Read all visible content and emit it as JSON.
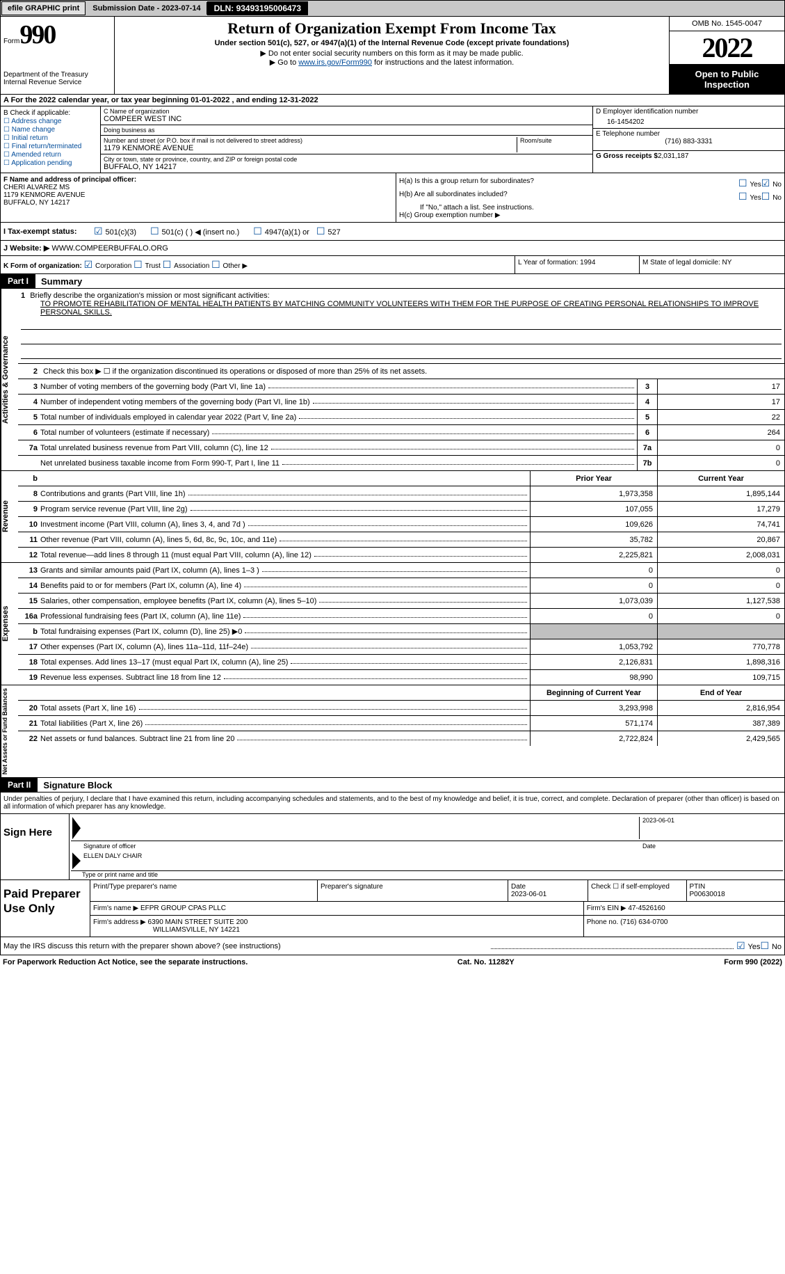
{
  "top": {
    "efile": "efile GRAPHIC print",
    "submission": "Submission Date - 2023-07-14",
    "dln": "DLN: 93493195006473"
  },
  "header": {
    "form_label": "Form",
    "form_num": "990",
    "dept": "Department of the Treasury",
    "irs": "Internal Revenue Service",
    "title": "Return of Organization Exempt From Income Tax",
    "sub": "Under section 501(c), 527, or 4947(a)(1) of the Internal Revenue Code (except private foundations)",
    "note1": "▶ Do not enter social security numbers on this form as it may be made public.",
    "note2_pre": "▶ Go to ",
    "note2_link": "www.irs.gov/Form990",
    "note2_post": " for instructions and the latest information.",
    "omb": "OMB No. 1545-0047",
    "year": "2022",
    "otp": "Open to Public Inspection"
  },
  "row_a": "A For the 2022 calendar year, or tax year beginning 01-01-2022    , and ending 12-31-2022",
  "block_b": {
    "label": "B Check if applicable:",
    "items": [
      "Address change",
      "Name change",
      "Initial return",
      "Final return/terminated",
      "Amended return",
      "Application pending"
    ]
  },
  "block_c": {
    "name_label": "C Name of organization",
    "name": "COMPEER WEST INC",
    "dba_label": "Doing business as",
    "dba": "",
    "addr_label": "Number and street (or P.O. box if mail is not delivered to street address)",
    "room_label": "Room/suite",
    "addr": "1179 KENMORE AVENUE",
    "city_label": "City or town, state or province, country, and ZIP or foreign postal code",
    "city": "BUFFALO, NY  14217"
  },
  "block_d": {
    "label": "D Employer identification number",
    "val": "16-1454202"
  },
  "block_e": {
    "label": "E Telephone number",
    "val": "(716) 883-3331"
  },
  "block_g": {
    "label": "G Gross receipts $",
    "val": "2,031,187"
  },
  "block_f": {
    "label": "F  Name and address of principal officer:",
    "name": "CHERI ALVAREZ MS",
    "addr1": "1179 KENMORE AVENUE",
    "addr2": "BUFFALO, NY  14217"
  },
  "block_h": {
    "a": "H(a)  Is this a group return for subordinates?",
    "b": "H(b)  Are all subordinates included?",
    "b_note": "If \"No,\" attach a list. See instructions.",
    "c": "H(c)  Group exemption number ▶"
  },
  "row_i": {
    "label": "I    Tax-exempt status:",
    "o1": "501(c)(3)",
    "o2": "501(c) (  ) ◀ (insert no.)",
    "o3": "4947(a)(1) or",
    "o4": "527"
  },
  "row_j": {
    "label": "J   Website: ▶",
    "val": "WWW.COMPEERBUFFALO.ORG"
  },
  "row_k": {
    "label": "K Form of organization:",
    "corp": "Corporation",
    "trust": "Trust",
    "assoc": "Association",
    "other": "Other ▶",
    "l": "L Year of formation: 1994",
    "m": "M State of legal domicile: NY"
  },
  "part1": {
    "hdr": "Part I",
    "title": "Summary"
  },
  "mission": {
    "q": "Briefly describe the organization's mission or most significant activities:",
    "text": "TO PROMOTE REHABILITATION OF MENTAL HEALTH PATIENTS BY MATCHING COMMUNITY VOLUNTEERS WITH THEM FOR THE PURPOSE OF CREATING PERSONAL RELATIONSHIPS TO IMPROVE PERSONAL SKILLS."
  },
  "line2": "Check this box ▶ ☐  if the organization discontinued its operations or disposed of more than 25% of its net assets.",
  "lines_ag": [
    {
      "n": "3",
      "d": "Number of voting members of the governing body (Part VI, line 1a)",
      "b": "3",
      "v": "17"
    },
    {
      "n": "4",
      "d": "Number of independent voting members of the governing body (Part VI, line 1b)",
      "b": "4",
      "v": "17"
    },
    {
      "n": "5",
      "d": "Total number of individuals employed in calendar year 2022 (Part V, line 2a)",
      "b": "5",
      "v": "22"
    },
    {
      "n": "6",
      "d": "Total number of volunteers (estimate if necessary)",
      "b": "6",
      "v": "264"
    },
    {
      "n": "7a",
      "d": "Total unrelated business revenue from Part VIII, column (C), line 12",
      "b": "7a",
      "v": "0"
    },
    {
      "n": "",
      "d": "Net unrelated business taxable income from Form 990-T, Part I, line 11",
      "b": "7b",
      "v": "0"
    }
  ],
  "col_hdrs": {
    "prior": "Prior Year",
    "current": "Current Year"
  },
  "revenue_tab": "Revenue",
  "expenses_tab": "Expenses",
  "netassets_tab": "Net Assets or Fund Balances",
  "ag_tab": "Activities & Governance",
  "revenue": [
    {
      "n": "8",
      "d": "Contributions and grants (Part VIII, line 1h)",
      "p": "1,973,358",
      "c": "1,895,144"
    },
    {
      "n": "9",
      "d": "Program service revenue (Part VIII, line 2g)",
      "p": "107,055",
      "c": "17,279"
    },
    {
      "n": "10",
      "d": "Investment income (Part VIII, column (A), lines 3, 4, and 7d )",
      "p": "109,626",
      "c": "74,741"
    },
    {
      "n": "11",
      "d": "Other revenue (Part VIII, column (A), lines 5, 6d, 8c, 9c, 10c, and 11e)",
      "p": "35,782",
      "c": "20,867"
    },
    {
      "n": "12",
      "d": "Total revenue—add lines 8 through 11 (must equal Part VIII, column (A), line 12)",
      "p": "2,225,821",
      "c": "2,008,031"
    }
  ],
  "expenses": [
    {
      "n": "13",
      "d": "Grants and similar amounts paid (Part IX, column (A), lines 1–3 )",
      "p": "0",
      "c": "0"
    },
    {
      "n": "14",
      "d": "Benefits paid to or for members (Part IX, column (A), line 4)",
      "p": "0",
      "c": "0"
    },
    {
      "n": "15",
      "d": "Salaries, other compensation, employee benefits (Part IX, column (A), lines 5–10)",
      "p": "1,073,039",
      "c": "1,127,538"
    },
    {
      "n": "16a",
      "d": "Professional fundraising fees (Part IX, column (A), line 11e)",
      "p": "0",
      "c": "0"
    },
    {
      "n": "b",
      "d": "Total fundraising expenses (Part IX, column (D), line 25) ▶0",
      "p": "GREY",
      "c": "GREY"
    },
    {
      "n": "17",
      "d": "Other expenses (Part IX, column (A), lines 11a–11d, 11f–24e)",
      "p": "1,053,792",
      "c": "770,778"
    },
    {
      "n": "18",
      "d": "Total expenses. Add lines 13–17 (must equal Part IX, column (A), line 25)",
      "p": "2,126,831",
      "c": "1,898,316"
    },
    {
      "n": "19",
      "d": "Revenue less expenses. Subtract line 18 from line 12",
      "p": "98,990",
      "c": "109,715"
    }
  ],
  "na_hdrs": {
    "begin": "Beginning of Current Year",
    "end": "End of Year"
  },
  "netassets": [
    {
      "n": "20",
      "d": "Total assets (Part X, line 16)",
      "p": "3,293,998",
      "c": "2,816,954"
    },
    {
      "n": "21",
      "d": "Total liabilities (Part X, line 26)",
      "p": "571,174",
      "c": "387,389"
    },
    {
      "n": "22",
      "d": "Net assets or fund balances. Subtract line 21 from line 20",
      "p": "2,722,824",
      "c": "2,429,565"
    }
  ],
  "part2": {
    "hdr": "Part II",
    "title": "Signature Block"
  },
  "perjury": "Under penalties of perjury, I declare that I have examined this return, including accompanying schedules and statements, and to the best of my knowledge and belief, it is true, correct, and complete. Declaration of preparer (other than officer) is based on all information of which preparer has any knowledge.",
  "sign": {
    "label": "Sign Here",
    "sig_label": "Signature of officer",
    "date_label": "Date",
    "date": "2023-06-01",
    "name": "ELLEN DALY CHAIR",
    "name_label": "Type or print name and title"
  },
  "prep": {
    "label": "Paid Preparer Use Only",
    "r1c1": "Print/Type preparer's name",
    "r1c2": "Preparer's signature",
    "r1c3l": "Date",
    "r1c3": "2023-06-01",
    "r1c4": "Check ☐ if self-employed",
    "r1c5l": "PTIN",
    "r1c5": "P00630018",
    "r2l": "Firm's name    ▶",
    "r2v": "EFPR GROUP CPAS PLLC",
    "r2r": "Firm's EIN ▶ 47-4526160",
    "r3l": "Firm's address ▶",
    "r3v1": "6390 MAIN STREET SUITE 200",
    "r3v2": "WILLIAMSVILLE, NY  14221",
    "r3r": "Phone no. (716) 634-0700"
  },
  "discuss": "May the IRS discuss this return with the preparer shown above? (see instructions)",
  "footer": {
    "l": "For Paperwork Reduction Act Notice, see the separate instructions.",
    "c": "Cat. No. 11282Y",
    "r": "Form 990 (2022)"
  }
}
